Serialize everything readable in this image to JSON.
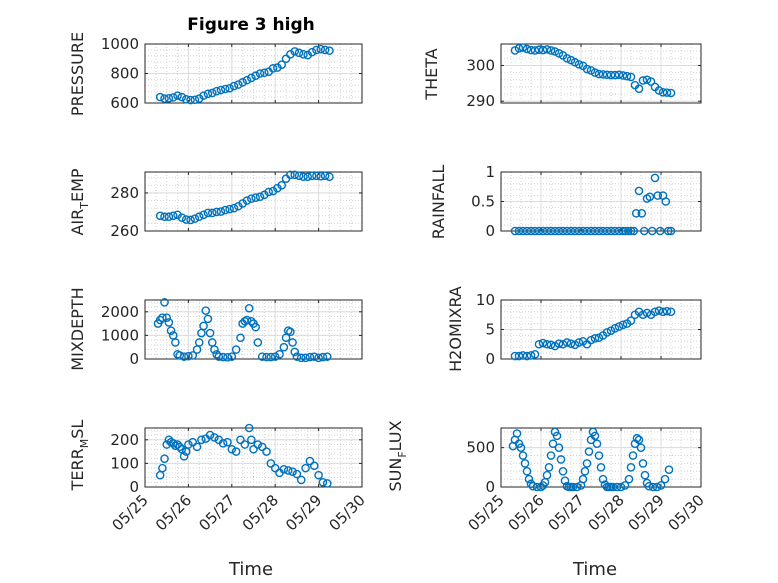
{
  "figure": {
    "title": "Figure 3 high",
    "marker_color": "#0072BD",
    "grid": true,
    "minor_grid": true,
    "time_ticks": [
      "05/25",
      "05/26",
      "05/27",
      "05/28",
      "05/29",
      "05/30"
    ],
    "time_xlabel": "Time"
  },
  "chart_data": [
    {
      "type": "scatter",
      "ylabel": "PRESSURE",
      "ylim": [
        600,
        1000
      ],
      "yticks": [
        600,
        800,
        1000
      ],
      "xlim": [
        25.0,
        30.0
      ],
      "x": [
        25.35,
        25.45,
        25.55,
        25.65,
        25.75,
        25.85,
        25.95,
        26.05,
        26.15,
        26.25,
        26.35,
        26.45,
        26.55,
        26.65,
        26.75,
        26.85,
        26.95,
        27.05,
        27.15,
        27.25,
        27.35,
        27.45,
        27.55,
        27.65,
        27.75,
        27.85,
        27.95,
        28.05,
        28.15,
        28.25,
        28.35,
        28.45,
        28.55,
        28.65,
        28.75,
        28.85,
        28.95,
        29.05,
        29.15,
        29.25
      ],
      "y": [
        640,
        630,
        632,
        638,
        650,
        640,
        625,
        620,
        622,
        630,
        650,
        662,
        668,
        680,
        688,
        695,
        700,
        715,
        725,
        740,
        755,
        770,
        785,
        800,
        805,
        812,
        835,
        840,
        860,
        900,
        930,
        950,
        940,
        930,
        925,
        945,
        960,
        965,
        960,
        955
      ]
    },
    {
      "type": "scatter",
      "ylabel": "THETA",
      "ylim": [
        289.5,
        306
      ],
      "yticks": [
        290,
        300
      ],
      "xlim": [
        25.0,
        30.0
      ],
      "x": [
        25.35,
        25.45,
        25.55,
        25.65,
        25.75,
        25.85,
        25.95,
        26.05,
        26.15,
        26.25,
        26.35,
        26.45,
        26.55,
        26.65,
        26.75,
        26.85,
        26.95,
        27.05,
        27.15,
        27.25,
        27.35,
        27.45,
        27.55,
        27.65,
        27.75,
        27.85,
        27.95,
        28.05,
        28.15,
        28.25,
        28.35,
        28.45,
        28.55,
        28.65,
        28.75,
        28.85,
        28.95,
        29.05,
        29.15,
        29.25
      ],
      "y": [
        304.2,
        304.8,
        305.0,
        304.6,
        304.3,
        304.2,
        304.4,
        304.3,
        304.5,
        304.2,
        303.9,
        303.4,
        302.8,
        302.0,
        301.5,
        300.9,
        300.3,
        299.9,
        299.0,
        298.6,
        298.0,
        297.6,
        297.5,
        297.4,
        297.3,
        297.3,
        297.4,
        297.2,
        297.0,
        296.8,
        294.5,
        293.5,
        295.8,
        296.0,
        295.5,
        294.0,
        293.0,
        292.5,
        292.4,
        292.3
      ]
    },
    {
      "type": "scatter",
      "ylabel": "AIR_TEMP",
      "ylim": [
        260,
        291
      ],
      "yticks": [
        260,
        280
      ],
      "xlim": [
        25.0,
        30.0
      ],
      "x": [
        25.35,
        25.45,
        25.55,
        25.65,
        25.75,
        25.85,
        25.95,
        26.05,
        26.15,
        26.25,
        26.35,
        26.45,
        26.55,
        26.65,
        26.75,
        26.85,
        26.95,
        27.05,
        27.15,
        27.25,
        27.35,
        27.45,
        27.55,
        27.65,
        27.75,
        27.85,
        27.95,
        28.05,
        28.15,
        28.25,
        28.35,
        28.45,
        28.55,
        28.65,
        28.75,
        28.85,
        28.95,
        29.05,
        29.15,
        29.25
      ],
      "y": [
        268,
        267.5,
        267.5,
        268,
        268.5,
        267,
        266,
        265.8,
        266.5,
        267.5,
        268.5,
        269.5,
        269.5,
        270,
        270.2,
        271,
        271.5,
        272,
        273,
        274.5,
        276,
        277,
        277.5,
        278,
        279,
        280.5,
        281,
        282.5,
        284,
        287.5,
        289.5,
        289.5,
        289,
        288.5,
        288.5,
        289,
        289,
        288.8,
        289,
        288.5
      ]
    },
    {
      "type": "scatter",
      "ylabel": "RAINFALL",
      "ylim": [
        0,
        1
      ],
      "yticks": [
        0,
        0.5,
        1
      ],
      "xlim": [
        25.0,
        30.0
      ],
      "x": [
        25.35,
        25.45,
        25.55,
        25.65,
        25.75,
        25.85,
        25.95,
        26.05,
        26.15,
        26.25,
        26.35,
        26.45,
        26.55,
        26.65,
        26.75,
        26.85,
        26.95,
        27.05,
        27.15,
        27.25,
        27.35,
        27.45,
        27.55,
        27.65,
        27.75,
        27.85,
        27.95,
        28.05,
        28.12,
        28.18,
        28.25,
        28.32,
        28.38,
        28.45,
        28.52,
        28.58,
        28.65,
        28.72,
        28.78,
        28.85,
        28.92,
        28.98,
        29.05,
        29.12,
        29.18,
        29.25
      ],
      "y": [
        0,
        0,
        0,
        0,
        0,
        0,
        0,
        0,
        0,
        0,
        0,
        0,
        0,
        0,
        0,
        0,
        0,
        0,
        0,
        0,
        0,
        0,
        0,
        0,
        0,
        0,
        0,
        0,
        0,
        0,
        0,
        0,
        0.3,
        0.68,
        0.3,
        0,
        0.55,
        0.58,
        0,
        0.9,
        0.6,
        0,
        0.6,
        0.5,
        0,
        0
      ]
    },
    {
      "type": "scatter",
      "ylabel": "MIXDEPTH",
      "ylim": [
        0,
        2500
      ],
      "yticks": [
        0,
        1000,
        2000
      ],
      "xlim": [
        25.0,
        30.0
      ],
      "x": [
        25.3,
        25.35,
        25.4,
        25.45,
        25.5,
        25.55,
        25.6,
        25.65,
        25.7,
        25.75,
        25.8,
        25.9,
        26.0,
        26.1,
        26.2,
        26.25,
        26.3,
        26.35,
        26.4,
        26.45,
        26.5,
        26.55,
        26.6,
        26.65,
        26.7,
        26.8,
        26.9,
        27.0,
        27.1,
        27.2,
        27.25,
        27.3,
        27.35,
        27.4,
        27.45,
        27.5,
        27.55,
        27.6,
        27.7,
        27.8,
        27.9,
        28.0,
        28.1,
        28.2,
        28.25,
        28.3,
        28.35,
        28.4,
        28.45,
        28.5,
        28.6,
        28.7,
        28.8,
        28.9,
        29.0,
        29.1,
        29.2
      ],
      "y": [
        1500,
        1650,
        1750,
        2400,
        1750,
        1550,
        1200,
        1000,
        700,
        200,
        150,
        100,
        120,
        150,
        400,
        700,
        1100,
        1400,
        2050,
        1700,
        1100,
        700,
        400,
        200,
        100,
        80,
        70,
        100,
        400,
        900,
        1500,
        1600,
        1650,
        2150,
        1600,
        1500,
        1350,
        700,
        100,
        80,
        80,
        100,
        200,
        500,
        900,
        1200,
        1150,
        700,
        300,
        100,
        50,
        50,
        80,
        100,
        50,
        80,
        100
      ]
    },
    {
      "type": "scatter",
      "ylabel": "H2OMIXRA",
      "ylim": [
        0,
        10
      ],
      "yticks": [
        0,
        5,
        10
      ],
      "xlim": [
        25.0,
        30.0
      ],
      "x": [
        25.35,
        25.45,
        25.55,
        25.65,
        25.75,
        25.85,
        25.95,
        26.05,
        26.15,
        26.25,
        26.35,
        26.45,
        26.55,
        26.65,
        26.75,
        26.85,
        26.95,
        27.05,
        27.15,
        27.25,
        27.35,
        27.45,
        27.55,
        27.65,
        27.75,
        27.85,
        27.95,
        28.05,
        28.15,
        28.25,
        28.35,
        28.45,
        28.55,
        28.65,
        28.75,
        28.85,
        28.95,
        29.05,
        29.15,
        29.25
      ],
      "y": [
        0.5,
        0.5,
        0.6,
        0.5,
        0.6,
        0.8,
        2.5,
        2.7,
        2.5,
        2.4,
        2.2,
        2.6,
        2.5,
        2.8,
        2.6,
        2.4,
        2.8,
        3.0,
        2.5,
        3.2,
        3.5,
        3.6,
        4.0,
        4.5,
        4.8,
        5.2,
        5.5,
        5.8,
        6.0,
        6.5,
        7.5,
        8.0,
        7.5,
        7.8,
        7.5,
        8.0,
        8.2,
        8.0,
        8.1,
        8.0
      ]
    },
    {
      "type": "scatter",
      "ylabel": "TERR_MSL",
      "ylim": [
        0,
        250
      ],
      "yticks": [
        0,
        100,
        200
      ],
      "xlim": [
        25.0,
        30.0
      ],
      "x": [
        25.35,
        25.4,
        25.45,
        25.5,
        25.55,
        25.6,
        25.65,
        25.7,
        25.75,
        25.8,
        25.85,
        25.9,
        25.95,
        26.0,
        26.1,
        26.2,
        26.3,
        26.4,
        26.5,
        26.6,
        26.7,
        26.8,
        26.9,
        27.0,
        27.1,
        27.2,
        27.3,
        27.4,
        27.45,
        27.5,
        27.6,
        27.7,
        27.8,
        27.9,
        28.0,
        28.1,
        28.2,
        28.3,
        28.4,
        28.5,
        28.6,
        28.7,
        28.8,
        28.9,
        29.0,
        29.1,
        29.2
      ],
      "y": [
        50,
        80,
        120,
        180,
        200,
        190,
        185,
        175,
        180,
        170,
        160,
        130,
        150,
        180,
        190,
        170,
        200,
        205,
        220,
        210,
        200,
        185,
        190,
        160,
        150,
        200,
        180,
        250,
        200,
        160,
        180,
        170,
        150,
        100,
        80,
        60,
        75,
        70,
        65,
        55,
        30,
        80,
        110,
        90,
        50,
        20,
        15
      ]
    },
    {
      "type": "scatter",
      "ylabel": "SUN_FLUX",
      "ylim": [
        0,
        750
      ],
      "yticks": [
        0,
        500
      ],
      "xlim": [
        25.0,
        30.0
      ],
      "x": [
        25.3,
        25.35,
        25.4,
        25.45,
        25.5,
        25.55,
        25.6,
        25.65,
        25.7,
        25.75,
        25.8,
        25.9,
        26.0,
        26.05,
        26.1,
        26.15,
        26.2,
        26.25,
        26.3,
        26.35,
        26.4,
        26.45,
        26.5,
        26.55,
        26.6,
        26.65,
        26.7,
        26.75,
        26.8,
        26.9,
        27.0,
        27.05,
        27.1,
        27.15,
        27.2,
        27.25,
        27.3,
        27.35,
        27.4,
        27.45,
        27.5,
        27.55,
        27.6,
        27.65,
        27.7,
        27.75,
        27.8,
        27.9,
        28.0,
        28.1,
        28.2,
        28.25,
        28.3,
        28.35,
        28.4,
        28.45,
        28.5,
        28.55,
        28.6,
        28.65,
        28.7,
        28.8,
        28.9,
        29.0,
        29.1,
        29.2
      ],
      "y": [
        520,
        600,
        680,
        550,
        500,
        400,
        300,
        200,
        100,
        40,
        10,
        0,
        0,
        20,
        60,
        150,
        250,
        400,
        550,
        700,
        650,
        500,
        350,
        200,
        80,
        10,
        0,
        0,
        0,
        0,
        20,
        100,
        200,
        300,
        450,
        600,
        700,
        650,
        550,
        400,
        250,
        100,
        30,
        0,
        0,
        0,
        0,
        0,
        0,
        20,
        100,
        250,
        400,
        550,
        620,
        600,
        500,
        300,
        150,
        50,
        10,
        0,
        0,
        20,
        100,
        220
      ]
    }
  ]
}
